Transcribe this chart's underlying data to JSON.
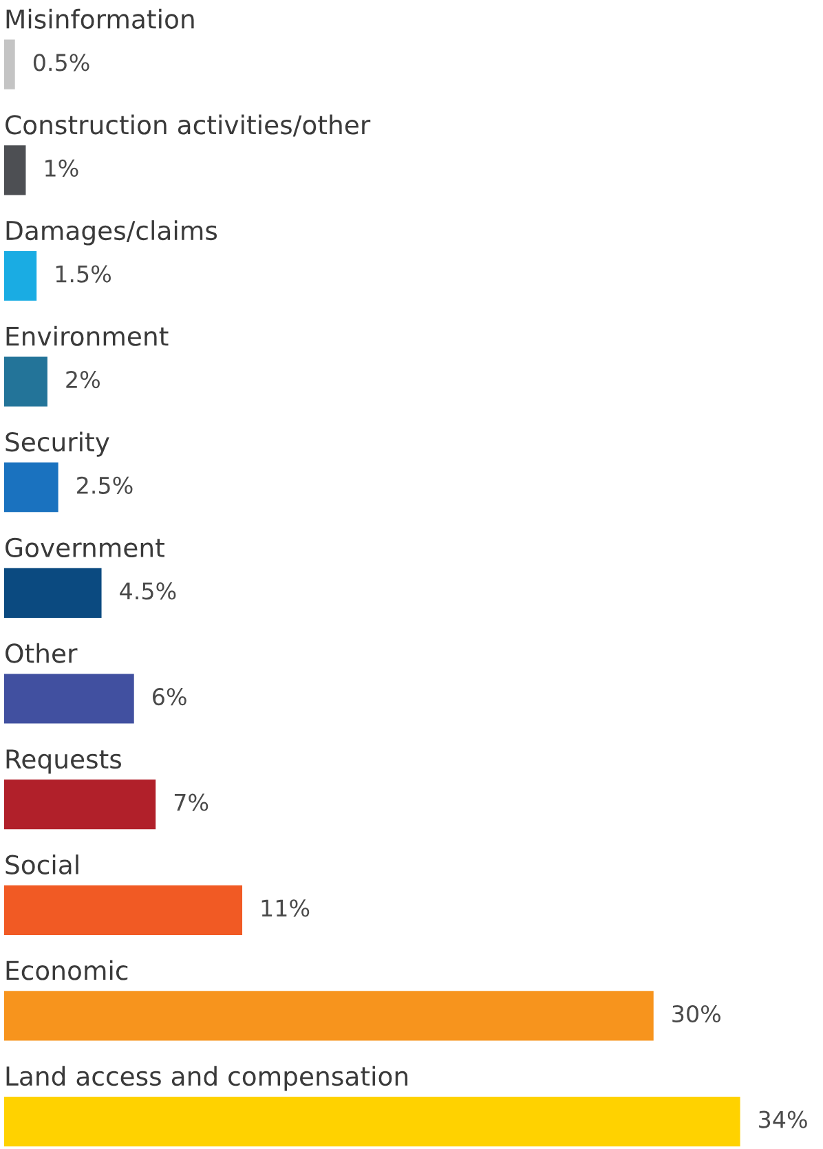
{
  "chart_data": {
    "type": "bar",
    "orientation": "horizontal",
    "categories": [
      "Misinformation",
      "Construction activities/other",
      "Damages/claims",
      "Environment",
      "Security",
      "Government",
      "Other",
      "Requests",
      "Social",
      "Economic",
      "Land access and compensation"
    ],
    "values": [
      0.5,
      1,
      1.5,
      2,
      2.5,
      4.5,
      6,
      7,
      11,
      30,
      34
    ],
    "colors": [
      "#c4c4c4",
      "#4d4f53",
      "#1aace3",
      "#237499",
      "#1a72bf",
      "#0b4a80",
      "#4150a0",
      "#b1202a",
      "#f15a24",
      "#f7941d",
      "#ffd200"
    ],
    "value_labels": [
      "0.5%",
      "1%",
      "1.5%",
      "2%",
      "2.5%",
      "4.5%",
      "6%",
      "7%",
      "11%",
      "30%",
      "34%"
    ]
  }
}
